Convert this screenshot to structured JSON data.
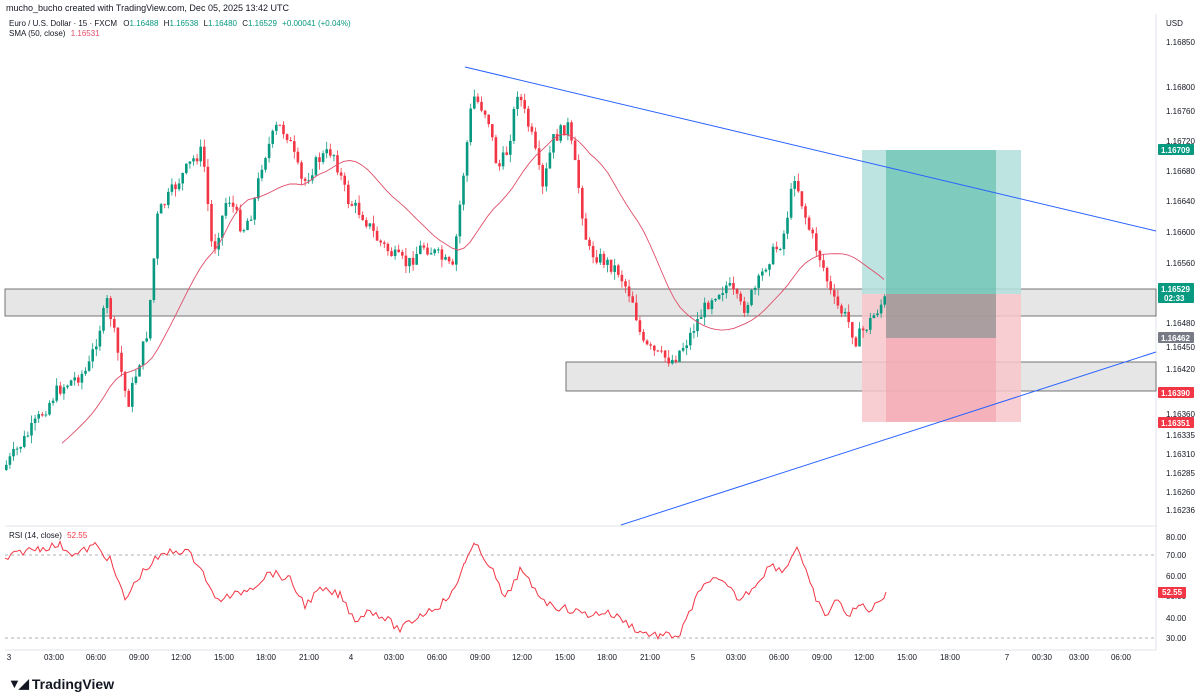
{
  "credit": "mucho_bucho created with TradingView.com, Dec 05, 2025 13:42 UTC",
  "brand": "TradingView",
  "legend": {
    "symbol": "Euro / U.S. Dollar · 15 · FXCM",
    "o_label": "O",
    "o": "1.16488",
    "h_label": "H",
    "h": "1.16538",
    "l_label": "L",
    "l": "1.16480",
    "c_label": "C",
    "c": "1.16529",
    "change": "+0.00041 (+0.04%)",
    "sma": "SMA (50, close)",
    "sma_value": "1.16531",
    "rsi": "RSI (14, close)",
    "rsi_value": "52.55"
  },
  "price_axis": {
    "currency": "USD",
    "ticks": [
      "1.16850",
      "1.16800",
      "1.16760",
      "1.16720",
      "1.16680",
      "1.16640",
      "1.16600",
      "1.16560",
      "1.16480",
      "1.16450",
      "1.16420",
      "1.16360",
      "1.16335",
      "1.16310",
      "1.16285",
      "1.16260",
      "1.16236"
    ],
    "labels": [
      {
        "text": "1.16709",
        "color": "#089981"
      },
      {
        "text": "1.16529",
        "sub": "02:33",
        "color": "#089981"
      },
      {
        "text": "1.16462",
        "color": "#787b86"
      },
      {
        "text": "1.16390",
        "color": "#f23645"
      },
      {
        "text": "1.16351",
        "color": "#f23645"
      }
    ]
  },
  "rsi_axis": {
    "ticks": [
      "80.00",
      "70.00",
      "60.00",
      "50.00",
      "40.00",
      "30.00"
    ],
    "current": "52.55"
  },
  "time_axis": [
    "3",
    "03:00",
    "06:00",
    "09:00",
    "12:00",
    "15:00",
    "18:00",
    "21:00",
    "4",
    "03:00",
    "06:00",
    "09:00",
    "12:00",
    "15:00",
    "18:00",
    "21:00",
    "5",
    "03:00",
    "06:00",
    "09:00",
    "12:00",
    "15:00",
    "18:00",
    "7",
    "00:30",
    "03:00",
    "06:00"
  ],
  "colors": {
    "up": "#089981",
    "down": "#f23645",
    "sma": "#e04e6b",
    "trend": "#2962ff",
    "rsi": "#f23645",
    "target": "#b2dfdb",
    "stop": "#f8c5cb",
    "zone": "#e0e0e0"
  },
  "chart_data": {
    "type": "candlestick",
    "symbol": "EURUSD",
    "timeframe": "15",
    "annotations": {
      "trendline_upper": [
        [
          1.16822,
          "Dec 4 08:00"
        ],
        [
          1.166,
          "Dec 5 21:00"
        ]
      ],
      "trendline_lower": [
        [
          1.1623,
          "Dec 4 19:00"
        ],
        [
          1.1645,
          "Dec 6 00:00"
        ]
      ],
      "zone_upper": [
        1.16535,
        1.1649
      ],
      "zone_lower": [
        1.1643,
        1.16393
      ],
      "position": {
        "target": 1.16709,
        "entry": 1.16529,
        "stop": 1.16351,
        "marker": 1.16462
      }
    },
    "rsi_levels": [
      70,
      30
    ]
  }
}
